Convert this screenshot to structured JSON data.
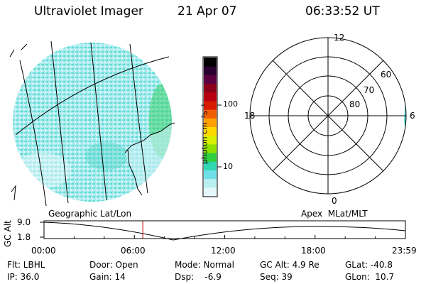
{
  "header": {
    "instrument": "Ultraviolet Imager",
    "date": "21 Apr 07",
    "time": "06:33:52 UT"
  },
  "colorbar": {
    "unit_label": "photon cm⁻²s⁻¹",
    "ticks": [
      "100",
      "10"
    ],
    "colors": [
      "#000000",
      "#2a0030",
      "#5a0040",
      "#8a0018",
      "#b80010",
      "#d81a00",
      "#f06000",
      "#ffa000",
      "#ffd800",
      "#d8f000",
      "#8ee000",
      "#30d040",
      "#30d8b0",
      "#70e0e8",
      "#b8f0f0",
      "#e4f8fb"
    ]
  },
  "polar_plot": {
    "labels": {
      "top": "12",
      "left": "18",
      "right": "6",
      "bottom": "0"
    },
    "latitude_labels": [
      "60",
      "70",
      "80"
    ]
  },
  "timeline": {
    "left_label": "Geographic Lat/Lon",
    "right_label": "Apex  MLat/MLT",
    "axis_name": "GC Alt",
    "y_ticks": [
      "9.0",
      "1.8"
    ],
    "x_ticks": [
      "00:00",
      "06:00",
      "12:00",
      "18:00",
      "23:59"
    ],
    "current_hour": 6.56
  },
  "status": {
    "flt": "Flt: LBHL",
    "ip": "IP: 36.0",
    "door": "Door: Open",
    "gain": "Gain: 14",
    "mode": "Mode: Normal",
    "dsp": "Dsp:    -6.9",
    "gc_alt": "GC Alt: 4.9 Re",
    "seq": "Seq: 39",
    "glat": "GLat: -40.8",
    "glon": "GLon:  10.7"
  }
}
